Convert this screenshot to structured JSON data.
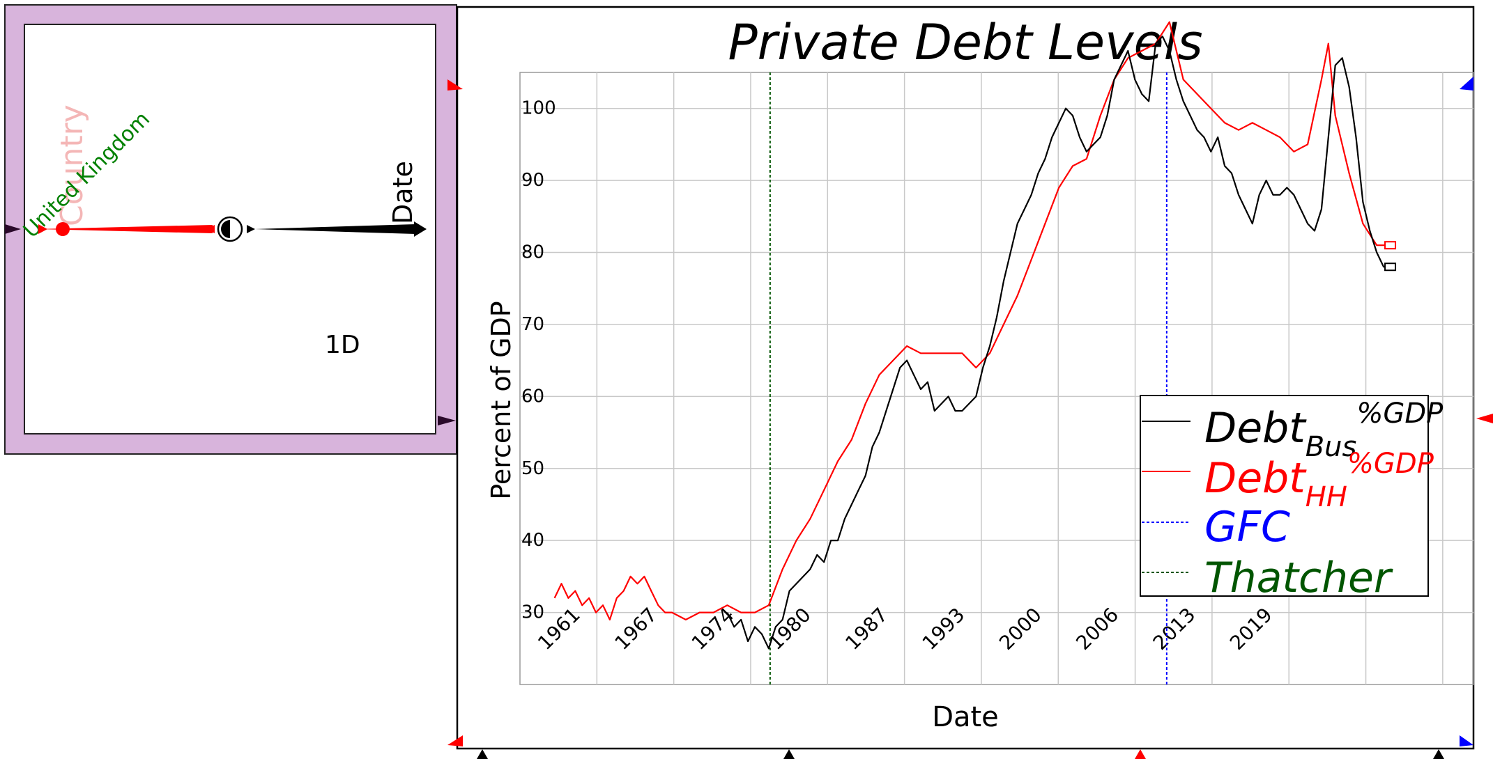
{
  "colors": {
    "panel_fill": "#d8b4dc",
    "bus": "#000000",
    "hh": "#ff0000",
    "gfc": "#0000ff",
    "thatcher": "#005500",
    "country_label": "#008000",
    "country_ghost": "#f4b6b6",
    "grid": "#c8c8c8"
  },
  "variable_panel": {
    "dimension_label": "Country",
    "dimension_value": "United Kingdom",
    "axis_label": "Date",
    "rank_label": "1D"
  },
  "chart_data": {
    "type": "line",
    "title": "Private Debt Levels",
    "xlabel": "Date",
    "ylabel": "Percent of GDP",
    "xlim": [
      1961,
      2030
    ],
    "ylim": [
      20,
      105
    ],
    "x_tick_labels": [
      "1961",
      "1967",
      "1974",
      "1980",
      "1987",
      "1993",
      "2000",
      "2006",
      "2013",
      "2019"
    ],
    "y_tick_labels": [
      "30",
      "40",
      "50",
      "60",
      "70",
      "80",
      "90",
      "100"
    ],
    "legend": {
      "position": "bottom-right",
      "bus": {
        "main": "Debt",
        "sub": "Bus",
        "sup": "%GDP"
      },
      "hh": {
        "main": "Debt",
        "sub": "HH",
        "sup": "%GDP"
      },
      "gfc": "GFC",
      "thatcher": "Thatcher"
    },
    "vlines": [
      {
        "key": "thatcher",
        "x": 1979.1
      },
      {
        "key": "gfc",
        "x": 2007.8
      }
    ],
    "series": [
      {
        "key": "hh",
        "x": [
          1963.5,
          1964,
          1964.5,
          1965,
          1965.5,
          1966,
          1966.5,
          1967,
          1967.5,
          1968,
          1968.5,
          1969,
          1969.5,
          1970,
          1970.5,
          1971,
          1971.5,
          1972,
          1973,
          1974,
          1975,
          1976,
          1977,
          1978,
          1979,
          1980,
          1981,
          1982,
          1983,
          1984,
          1985,
          1986,
          1987,
          1988,
          1989,
          1990,
          1991,
          1992,
          1993,
          1994,
          1995,
          1996,
          1997,
          1998,
          1999,
          2000,
          2001,
          2002,
          2003,
          2004,
          2005,
          2006,
          2007,
          2008,
          2009,
          2010,
          2011,
          2012,
          2013,
          2014,
          2015,
          2016,
          2017,
          2018,
          2019,
          2019.5,
          2020,
          2021,
          2022,
          2023,
          2024
        ],
        "y": [
          32,
          34,
          32,
          33,
          31,
          32,
          30,
          31,
          29,
          32,
          33,
          35,
          34,
          35,
          33,
          31,
          30,
          30,
          29,
          30,
          30,
          31,
          30,
          30,
          31,
          36,
          40,
          43,
          47,
          51,
          54,
          59,
          63,
          65,
          67,
          66,
          66,
          66,
          66,
          64,
          66,
          70,
          74,
          79,
          84,
          89,
          92,
          93,
          99,
          104,
          107,
          108,
          109,
          112,
          104,
          102,
          100,
          98,
          97,
          98,
          97,
          96,
          94,
          95,
          104,
          109,
          99,
          91,
          84,
          81,
          81
        ]
      },
      {
        "key": "bus",
        "x": [
          1976,
          1976.5,
          1977,
          1977.5,
          1978,
          1978.5,
          1979,
          1979.5,
          1980,
          1980.5,
          1981,
          1981.5,
          1982,
          1982.5,
          1983,
          1983.5,
          1984,
          1984.5,
          1985,
          1985.5,
          1986,
          1986.5,
          1987,
          1987.5,
          1988,
          1988.5,
          1989,
          1989.5,
          1990,
          1990.5,
          1991,
          1991.5,
          1992,
          1992.5,
          1993,
          1993.5,
          1994,
          1994.5,
          1995,
          1995.5,
          1996,
          1996.5,
          1997,
          1997.5,
          1998,
          1998.5,
          1999,
          1999.5,
          2000,
          2000.5,
          2001,
          2001.5,
          2002,
          2002.5,
          2003,
          2003.5,
          2004,
          2004.5,
          2005,
          2005.5,
          2006,
          2006.5,
          2007,
          2007.5,
          2008,
          2008.5,
          2009,
          2009.5,
          2010,
          2010.5,
          2011,
          2011.5,
          2012,
          2012.5,
          2013,
          2013.5,
          2014,
          2014.5,
          2015,
          2015.5,
          2016,
          2016.5,
          2017,
          2017.5,
          2018,
          2018.5,
          2019,
          2019.5,
          2020,
          2020.5,
          2021,
          2021.5,
          2022,
          2022.5,
          2023,
          2023.5,
          2024
        ],
        "y": [
          30,
          28,
          29,
          26,
          28,
          27,
          25,
          28,
          29,
          33,
          34,
          35,
          36,
          38,
          37,
          40,
          40,
          43,
          45,
          47,
          49,
          53,
          55,
          58,
          61,
          64,
          65,
          63,
          61,
          62,
          58,
          59,
          60,
          58,
          58,
          59,
          60,
          64,
          67,
          71,
          76,
          80,
          84,
          86,
          88,
          91,
          93,
          96,
          98,
          100,
          99,
          96,
          94,
          95,
          96,
          99,
          104,
          106,
          108,
          104,
          102,
          101,
          109,
          110,
          108,
          104,
          101,
          99,
          97,
          96,
          94,
          96,
          92,
          91,
          88,
          86,
          84,
          88,
          90,
          88,
          88,
          89,
          88,
          86,
          84,
          83,
          86,
          96,
          106,
          107,
          103,
          96,
          87,
          83,
          80,
          78,
          78
        ]
      }
    ]
  }
}
